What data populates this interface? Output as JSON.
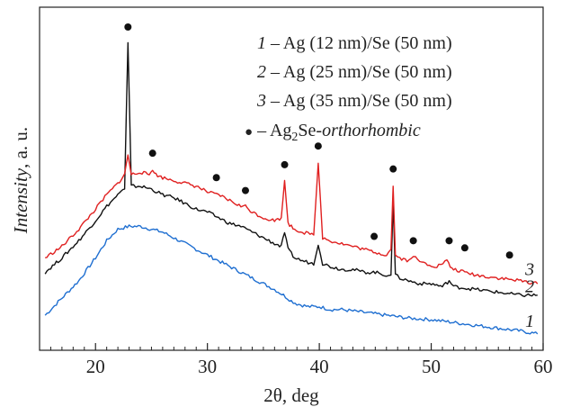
{
  "chart_data": {
    "type": "line",
    "xlabel": "2θ, deg",
    "ylabel_italic": "Intensity",
    "ylabel_rest": ", a. u.",
    "xlim": [
      15,
      60
    ],
    "x_ticks": [
      20,
      30,
      40,
      50,
      60
    ],
    "x_tick_labels": [
      "20",
      "30",
      "40",
      "50",
      "60"
    ],
    "grid": false,
    "legend_position": "top-right",
    "legend": [
      {
        "number": "1",
        "text": " – Ag (12 nm)/Se (50 nm)"
      },
      {
        "number": "2",
        "text": " – Ag (25 nm)/Se (50 nm)"
      },
      {
        "number": "3",
        "text": " – Ag (35 nm)/Se (50 nm)"
      },
      {
        "marker": "●",
        "prefix": " – Ag",
        "subscript": "2",
        "mid": "Se-",
        "italic_suffix": "orthorhombic"
      }
    ],
    "series": [
      {
        "label": "1",
        "color": "#1f6fd1",
        "x": [
          15.5,
          17,
          18.5,
          20,
          21,
          22,
          23,
          24,
          25,
          26,
          27,
          28,
          29,
          30,
          31,
          32,
          33,
          34,
          35,
          36,
          36.8,
          37.5,
          38,
          39,
          40,
          41,
          42,
          44,
          46,
          48,
          50,
          52,
          54,
          56,
          58,
          59.5
        ],
        "y": [
          0.1,
          0.16,
          0.22,
          0.3,
          0.36,
          0.4,
          0.41,
          0.41,
          0.4,
          0.39,
          0.37,
          0.35,
          0.33,
          0.31,
          0.29,
          0.27,
          0.25,
          0.23,
          0.21,
          0.19,
          0.17,
          0.15,
          0.14,
          0.13,
          0.13,
          0.12,
          0.12,
          0.11,
          0.1,
          0.09,
          0.085,
          0.075,
          0.065,
          0.055,
          0.045,
          0.035
        ]
      },
      {
        "label": "2",
        "color": "#111111",
        "x": [
          15.5,
          17,
          18.5,
          20,
          21,
          22,
          22.6,
          22.9,
          23.2,
          23.6,
          24,
          25,
          26,
          27,
          28,
          29,
          30,
          31,
          32,
          33,
          34,
          35,
          36,
          36.6,
          36.9,
          37.2,
          37.8,
          38.5,
          39.5,
          39.9,
          40.3,
          41,
          42,
          43,
          44,
          45,
          46,
          46.4,
          46.6,
          46.8,
          47.2,
          48,
          49,
          50,
          51,
          51.6,
          52,
          54,
          56,
          58,
          59.5
        ],
        "y": [
          0.25,
          0.3,
          0.36,
          0.43,
          0.48,
          0.52,
          0.54,
          1.05,
          0.55,
          0.55,
          0.55,
          0.54,
          0.52,
          0.51,
          0.49,
          0.47,
          0.46,
          0.44,
          0.42,
          0.41,
          0.39,
          0.37,
          0.35,
          0.34,
          0.39,
          0.33,
          0.3,
          0.29,
          0.28,
          0.35,
          0.28,
          0.27,
          0.26,
          0.26,
          0.25,
          0.25,
          0.24,
          0.24,
          0.5,
          0.24,
          0.23,
          0.22,
          0.21,
          0.21,
          0.2,
          0.22,
          0.2,
          0.19,
          0.18,
          0.17,
          0.17
        ]
      },
      {
        "label": "3",
        "color": "#e02020",
        "x": [
          15.5,
          17,
          18.5,
          20,
          21,
          22,
          22.6,
          22.9,
          23.2,
          24,
          24.8,
          25.1,
          25.4,
          26,
          27,
          28,
          29,
          30,
          30.8,
          31,
          32,
          33,
          33.4,
          34,
          35,
          36,
          36.6,
          36.9,
          37.2,
          37.8,
          38.5,
          39.5,
          39.9,
          40.3,
          41,
          42,
          43,
          44,
          45,
          46,
          46.4,
          46.6,
          46.8,
          47.2,
          48,
          48.4,
          48.8,
          49.5,
          50.5,
          51.4,
          51.7,
          52,
          53,
          54,
          56,
          58,
          59.5
        ],
        "y": [
          0.3,
          0.34,
          0.4,
          0.47,
          0.52,
          0.56,
          0.59,
          0.66,
          0.59,
          0.6,
          0.59,
          0.61,
          0.59,
          0.58,
          0.57,
          0.56,
          0.55,
          0.53,
          0.52,
          0.52,
          0.5,
          0.48,
          0.48,
          0.46,
          0.44,
          0.43,
          0.44,
          0.57,
          0.42,
          0.4,
          0.39,
          0.38,
          0.63,
          0.37,
          0.36,
          0.35,
          0.34,
          0.33,
          0.32,
          0.31,
          0.33,
          0.55,
          0.31,
          0.3,
          0.29,
          0.31,
          0.29,
          0.28,
          0.27,
          0.29,
          0.27,
          0.26,
          0.25,
          0.24,
          0.23,
          0.22,
          0.21
        ]
      }
    ],
    "marker_points": [
      {
        "x": 22.9,
        "y": 1.105
      },
      {
        "x": 25.1,
        "y": 0.665
      },
      {
        "x": 30.8,
        "y": 0.58
      },
      {
        "x": 33.4,
        "y": 0.535
      },
      {
        "x": 36.9,
        "y": 0.625
      },
      {
        "x": 39.9,
        "y": 0.69
      },
      {
        "x": 44.9,
        "y": 0.375
      },
      {
        "x": 46.6,
        "y": 0.61
      },
      {
        "x": 48.4,
        "y": 0.36
      },
      {
        "x": 51.6,
        "y": 0.36
      },
      {
        "x": 53.0,
        "y": 0.335
      },
      {
        "x": 57.0,
        "y": 0.31
      }
    ],
    "curve_labels": [
      {
        "text": "3",
        "x": 58.8,
        "y": 0.24
      },
      {
        "text": "2",
        "x": 58.8,
        "y": 0.18
      },
      {
        "text": "1",
        "x": 58.8,
        "y": 0.06
      }
    ]
  }
}
